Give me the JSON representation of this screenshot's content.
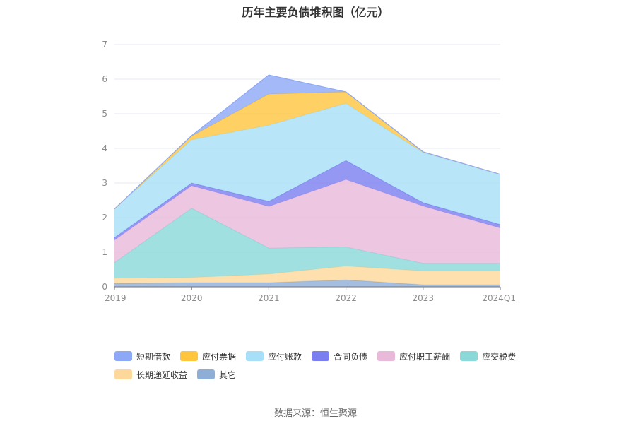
{
  "chart_data": {
    "type": "area",
    "stacked": true,
    "title": "历年主要负债堆积图（亿元）",
    "categories": [
      "2019",
      "2020",
      "2021",
      "2022",
      "2023",
      "2024Q1"
    ],
    "ylim": [
      0,
      7
    ],
    "yticks": [
      0,
      1,
      2,
      3,
      4,
      5,
      6,
      7
    ],
    "grid": true,
    "legend_position": "bottom",
    "series": [
      {
        "name": "其它",
        "color": "#8eaed8",
        "values": [
          0.1,
          0.12,
          0.12,
          0.2,
          0.06,
          0.06
        ]
      },
      {
        "name": "长期递延收益",
        "color": "#fdd89a",
        "values": [
          0.15,
          0.15,
          0.25,
          0.4,
          0.4,
          0.4
        ]
      },
      {
        "name": "应交税费",
        "color": "#8ad8d8",
        "values": [
          0.45,
          2.0,
          0.75,
          0.55,
          0.22,
          0.22
        ]
      },
      {
        "name": "应付职工薪酬",
        "color": "#e8b9d9",
        "values": [
          0.65,
          0.65,
          1.2,
          1.95,
          1.65,
          1.02
        ]
      },
      {
        "name": "合同负债",
        "color": "#7b7ef0",
        "values": [
          0.07,
          0.08,
          0.15,
          0.55,
          0.1,
          0.1
        ]
      },
      {
        "name": "应付账款",
        "color": "#a8dff8",
        "values": [
          0.83,
          1.25,
          2.2,
          1.65,
          1.45,
          1.45
        ]
      },
      {
        "name": "应付票据",
        "color": "#ffc53d",
        "values": [
          0.0,
          0.1,
          0.9,
          0.33,
          0.02,
          0.0
        ]
      },
      {
        "name": "短期借款",
        "color": "#8da8f6",
        "values": [
          0.0,
          0.02,
          0.55,
          0.0,
          0.0,
          0.0
        ]
      }
    ],
    "legend_order": [
      "短期借款",
      "应付票据",
      "应付账款",
      "合同负债",
      "应付职工薪酬",
      "应交税费",
      "长期递延收益",
      "其它"
    ]
  },
  "source": "数据来源：恒生聚源"
}
